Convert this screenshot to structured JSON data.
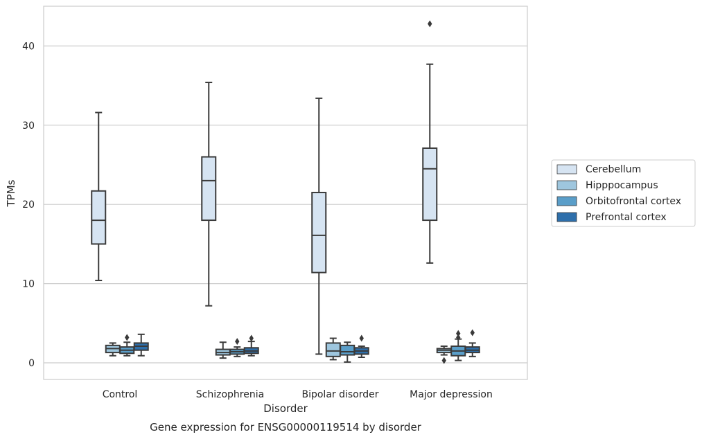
{
  "chart_data": {
    "type": "box",
    "xlabel": "Disorder",
    "ylabel": "TPMs",
    "caption": "Gene expression for ENSG00000119514 by disorder",
    "categories": [
      "Control",
      "Schizophrenia",
      "Bipolar disorder",
      "Major depression"
    ],
    "ylim": [
      -2,
      45
    ],
    "yticks": [
      0,
      10,
      20,
      30,
      40
    ],
    "grid": "horizontal",
    "legend_position": "right",
    "colors": {
      "Cerebellum": "#d6e4f2",
      "Hipppocampus": "#9ec6de",
      "Orbitofrontal cortex": "#5a9ec9",
      "Prefrontal cortex": "#2e6fab",
      "edge": "#3a3a3a",
      "grid": "#cccccc",
      "frame": "#cccccc"
    },
    "series": [
      {
        "name": "Cerebellum",
        "boxes": [
          {
            "whislo": 10.4,
            "q1": 15.0,
            "med": 18.0,
            "q3": 21.7,
            "whishi": 31.6,
            "fliers": []
          },
          {
            "whislo": 7.2,
            "q1": 18.0,
            "med": 23.0,
            "q3": 26.0,
            "whishi": 35.4,
            "fliers": []
          },
          {
            "whislo": 1.1,
            "q1": 11.4,
            "med": 16.1,
            "q3": 21.5,
            "whishi": 33.4,
            "fliers": []
          },
          {
            "whislo": 12.6,
            "q1": 18.0,
            "med": 24.5,
            "q3": 27.1,
            "whishi": 37.7,
            "fliers": [
              42.8
            ]
          }
        ]
      },
      {
        "name": "Hipppocampus",
        "boxes": [
          {
            "whislo": 0.9,
            "q1": 1.3,
            "med": 1.8,
            "q3": 2.2,
            "whishi": 2.5,
            "fliers": []
          },
          {
            "whislo": 0.6,
            "q1": 1.0,
            "med": 1.3,
            "q3": 1.7,
            "whishi": 2.6,
            "fliers": []
          },
          {
            "whislo": 0.4,
            "q1": 0.8,
            "med": 1.5,
            "q3": 2.5,
            "whishi": 3.1,
            "fliers": []
          },
          {
            "whislo": 1.0,
            "q1": 1.3,
            "med": 1.6,
            "q3": 1.8,
            "whishi": 2.1,
            "fliers": [
              0.3
            ]
          }
        ]
      },
      {
        "name": "Orbitofrontal cortex",
        "boxes": [
          {
            "whislo": 0.9,
            "q1": 1.2,
            "med": 1.6,
            "q3": 2.0,
            "whishi": 2.6,
            "fliers": [
              3.2
            ]
          },
          {
            "whislo": 0.8,
            "q1": 1.1,
            "med": 1.4,
            "q3": 1.7,
            "whishi": 2.0,
            "fliers": [
              2.7
            ]
          },
          {
            "whislo": 0.1,
            "q1": 1.0,
            "med": 1.4,
            "q3": 2.2,
            "whishi": 2.6,
            "fliers": []
          },
          {
            "whislo": 0.3,
            "q1": 0.9,
            "med": 1.5,
            "q3": 2.1,
            "whishi": 3.0,
            "fliers": [
              3.2,
              3.7
            ]
          }
        ]
      },
      {
        "name": "Prefrontal cortex",
        "boxes": [
          {
            "whislo": 0.9,
            "q1": 1.6,
            "med": 2.1,
            "q3": 2.5,
            "whishi": 3.6,
            "fliers": []
          },
          {
            "whislo": 0.9,
            "q1": 1.2,
            "med": 1.5,
            "q3": 1.9,
            "whishi": 2.7,
            "fliers": [
              3.1
            ]
          },
          {
            "whislo": 0.7,
            "q1": 1.1,
            "med": 1.5,
            "q3": 1.9,
            "whishi": 2.1,
            "fliers": [
              3.1
            ]
          },
          {
            "whislo": 0.8,
            "q1": 1.3,
            "med": 1.6,
            "q3": 2.0,
            "whishi": 2.5,
            "fliers": [
              3.8
            ]
          }
        ]
      }
    ]
  }
}
